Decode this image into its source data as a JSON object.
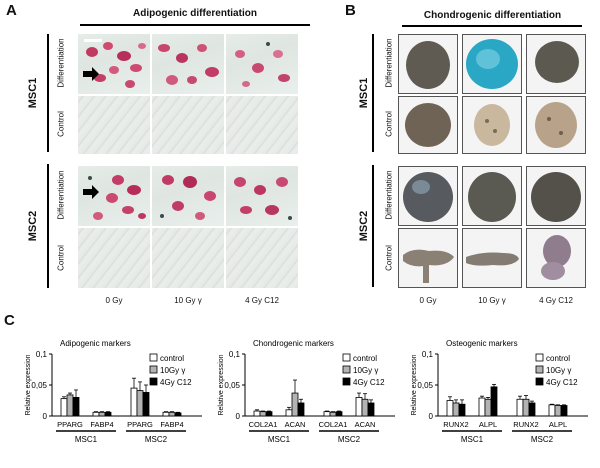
{
  "panel_a": {
    "letter": "A",
    "title": "Adipogenic differentiation",
    "groups": [
      "MSC1",
      "MSC2"
    ],
    "row_labels": [
      "Differentiation",
      "Control"
    ],
    "columns": [
      "0 Gy",
      "10 Gy γ",
      "4 Gy C12"
    ]
  },
  "panel_b": {
    "letter": "B",
    "title": "Chondrogenic differentiation",
    "groups": [
      "MSC1",
      "MSC2"
    ],
    "row_labels": [
      "Differentiation",
      "Control"
    ],
    "columns": [
      "0 Gy",
      "10 Gy γ",
      "4 Gy C12"
    ]
  },
  "panel_c": {
    "letter": "C"
  },
  "chart_data": [
    {
      "type": "bar",
      "title": "Adipogenic markers",
      "ylabel": "Relative expression",
      "ylim": [
        0,
        0.1
      ],
      "yticks": [
        "0",
        "0,05",
        "0,1"
      ],
      "categories": [
        "PPARG",
        "FABP4",
        "PPARG",
        "FABP4"
      ],
      "groups": [
        "MSC1",
        "MSC2"
      ],
      "series": [
        {
          "name": "control",
          "color": "#ffffff",
          "values": [
            0.028,
            0.006,
            0.045,
            0.006
          ],
          "errors": [
            0.003,
            0.001,
            0.016,
            0.001
          ]
        },
        {
          "name": "10Gy γ",
          "color": "#b3b3b3",
          "values": [
            0.034,
            0.006,
            0.041,
            0.006
          ],
          "errors": [
            0.003,
            0.001,
            0.014,
            0.001
          ]
        },
        {
          "name": "4Gy C12",
          "color": "#000000",
          "values": [
            0.03,
            0.006,
            0.038,
            0.005
          ],
          "errors": [
            0.012,
            0.001,
            0.012,
            0.001
          ]
        }
      ]
    },
    {
      "type": "bar",
      "title": "Chondrogenic markers",
      "ylabel": "Relative expression",
      "ylim": [
        0,
        0.1
      ],
      "yticks": [
        "0",
        "0,05",
        "0,1"
      ],
      "categories": [
        "COL2A1",
        "ACAN",
        "COL2A1",
        "ACAN"
      ],
      "groups": [
        "MSC1",
        "MSC2"
      ],
      "series": [
        {
          "name": "control",
          "color": "#ffffff",
          "values": [
            0.008,
            0.01,
            0.007,
            0.03
          ],
          "errors": [
            0.002,
            0.004,
            0.001,
            0.007
          ]
        },
        {
          "name": "10Gy γ",
          "color": "#b3b3b3",
          "values": [
            0.007,
            0.037,
            0.006,
            0.027
          ],
          "errors": [
            0.001,
            0.021,
            0.001,
            0.009
          ]
        },
        {
          "name": "4Gy C12",
          "color": "#000000",
          "values": [
            0.007,
            0.021,
            0.007,
            0.021
          ],
          "errors": [
            0.001,
            0.006,
            0.001,
            0.005
          ]
        }
      ]
    },
    {
      "type": "bar",
      "title": "Osteogenic markers",
      "ylabel": "Relative expression",
      "ylim": [
        0,
        0.1
      ],
      "yticks": [
        "0",
        "0,05",
        "0,1"
      ],
      "categories": [
        "RUNX2",
        "ALPL",
        "RUNX2",
        "ALPL"
      ],
      "groups": [
        "MSC1",
        "MSC2"
      ],
      "series": [
        {
          "name": "control",
          "color": "#ffffff",
          "values": [
            0.025,
            0.029,
            0.027,
            0.018
          ],
          "errors": [
            0.006,
            0.003,
            0.005,
            0.001
          ]
        },
        {
          "name": "10Gy γ",
          "color": "#b3b3b3",
          "values": [
            0.021,
            0.027,
            0.027,
            0.017
          ],
          "errors": [
            0.005,
            0.003,
            0.006,
            0.001
          ]
        },
        {
          "name": "4Gy C12",
          "color": "#000000",
          "values": [
            0.019,
            0.047,
            0.021,
            0.017
          ],
          "errors": [
            0.007,
            0.004,
            0.003,
            0.001
          ]
        }
      ]
    }
  ]
}
